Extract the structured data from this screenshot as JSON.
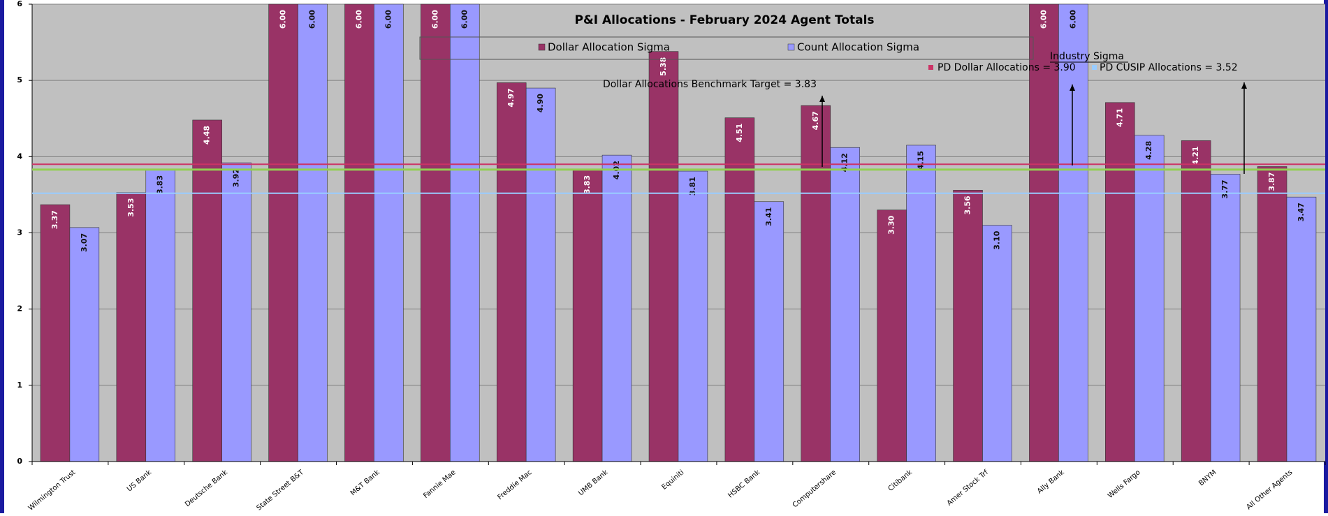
{
  "chart_data": {
    "type": "bar",
    "title": "P&I Allocations - February 2024 Agent Totals",
    "categories": [
      "Wilmington Trust",
      "US Bank",
      "Deutsche Bank",
      "State Street B&T",
      "M&T Bank",
      "Fannie Mae",
      "Freddie Mac",
      "UMB Bank",
      "Equiniti",
      "HSBC Bank",
      "Computershare",
      "Citibank",
      "Amer Stock Trf",
      "Ally Bank",
      "Wells Fargo",
      "BNYM",
      "All Other Agents"
    ],
    "series": [
      {
        "name": "Dollar Allocation Sigma",
        "color": "#993366",
        "values": [
          3.37,
          3.53,
          4.48,
          6,
          6,
          6,
          4.97,
          3.83,
          5.38,
          4.51,
          4.67,
          3.3,
          3.56,
          6,
          4.71,
          4.21,
          3.87
        ],
        "value_labels": [
          "3.37",
          "3.53",
          "4.48",
          "6.00",
          "6.00",
          "6.00",
          "4.97",
          "3.83",
          "5.38",
          "4.51",
          "4.67",
          "3.30",
          "3.56",
          "6.00",
          "4.71",
          "4.21",
          "3.87"
        ]
      },
      {
        "name": "Count Allocation Sigma",
        "color": "#9999ff",
        "values": [
          3.07,
          3.83,
          3.92,
          6,
          6,
          6,
          4.9,
          4.02,
          3.81,
          3.41,
          4.12,
          4.15,
          3.1,
          6,
          4.28,
          3.77,
          3.47
        ],
        "value_labels": [
          "3.07",
          "3.83",
          "3.92",
          "6.00",
          "6.00",
          "6.00",
          "4.90",
          "4.02",
          "3.81",
          "3.41",
          "4.12",
          "4.15",
          "3.10",
          "6.00",
          "4.28",
          "3.77",
          "3.47"
        ]
      }
    ],
    "ylim": [
      0,
      6
    ],
    "yticks": [
      0,
      1,
      2,
      3,
      4,
      5,
      6
    ],
    "grid": true,
    "annotation": "Industry Sigma",
    "reference_lines": [
      {
        "label": "Dollar Allocations Benchmark Target  = 3.83",
        "value": 3.83,
        "color": "#92d050"
      },
      {
        "label": "PD Dollar Allocations = 3.90",
        "value": 3.9,
        "color": "#cc3366"
      },
      {
        "label": "PD CUSIP Allocations = 3.52",
        "value": 3.52,
        "color": "#99ccff"
      }
    ]
  }
}
